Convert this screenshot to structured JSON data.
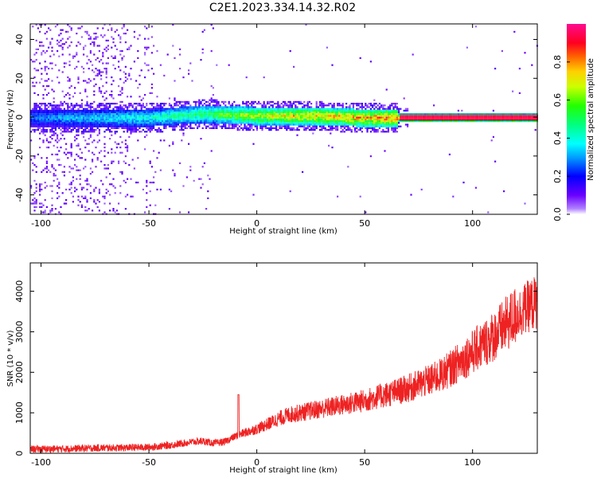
{
  "title": "C2E1.2023.334.14.32.R02",
  "colors": {
    "snr_line": "#ee2222",
    "axis": "#000000",
    "tick_label": "#000000"
  },
  "chart_data": [
    {
      "type": "heatmap",
      "title": "",
      "xlabel": "Height of straight line (km)",
      "ylabel": "Frequency (Hz)",
      "xlim": [
        -105,
        130
      ],
      "ylim": [
        -50,
        48
      ],
      "xticks": [
        -100,
        -50,
        0,
        50,
        100
      ],
      "yticks": [
        -40,
        -20,
        0,
        20,
        40
      ],
      "grid": false,
      "colormap": "gist_rainbow_r (white at low amplitudes)",
      "colorbar": {
        "label": "Normalized spectral amplitude",
        "range": [
          0.0,
          1.0
        ],
        "ticks": [
          0.0,
          0.2,
          0.4,
          0.6,
          0.8
        ],
        "tick_labels": [
          "0.0",
          "0.2",
          "0.4",
          "0.6",
          "0.8"
        ]
      },
      "description_points": [
        {
          "x": -105,
          "peak_freq": 0,
          "amplitude": 0.3
        },
        {
          "x": -50,
          "peak_freq": 0,
          "amplitude": 0.45
        },
        {
          "x": -25,
          "peak_freq": 2,
          "amplitude": 0.55
        },
        {
          "x": 0,
          "peak_freq": 1,
          "amplitude": 0.75
        },
        {
          "x": 25,
          "peak_freq": 1,
          "amplitude": 0.8
        },
        {
          "x": 50,
          "peak_freq": 0,
          "amplitude": 0.85
        },
        {
          "x": 70,
          "peak_freq": 0,
          "amplitude": 0.95
        },
        {
          "x": 130,
          "peak_freq": 0,
          "amplitude": 0.95
        }
      ]
    },
    {
      "type": "line",
      "title": "",
      "xlabel": "Height of straight line (km)",
      "ylabel": "SNR (10 * v/v)",
      "xlim": [
        -105,
        130
      ],
      "ylim": [
        0,
        4700
      ],
      "xticks": [
        -100,
        -50,
        0,
        50,
        100
      ],
      "yticks": [
        0,
        1000,
        2000,
        3000,
        4000
      ],
      "grid": false,
      "series": [
        {
          "x": [
            -105,
            -90,
            -75,
            -60,
            -50,
            -40,
            -30,
            -25,
            -20,
            -15,
            -10,
            -5,
            0,
            5,
            10,
            15,
            20,
            25,
            30,
            35,
            40,
            45,
            50,
            55,
            60,
            65,
            70,
            75,
            80,
            85,
            90,
            95,
            100,
            105,
            110,
            115,
            120,
            125,
            130
          ],
          "y": [
            100,
            110,
            130,
            140,
            150,
            200,
            280,
            300,
            250,
            280,
            420,
            520,
            600,
            720,
            850,
            950,
            1000,
            1050,
            1100,
            1150,
            1200,
            1250,
            1300,
            1380,
            1450,
            1520,
            1600,
            1700,
            1800,
            1920,
            2100,
            2300,
            2500,
            2700,
            2900,
            3150,
            3400,
            3600,
            3750
          ]
        }
      ]
    }
  ]
}
